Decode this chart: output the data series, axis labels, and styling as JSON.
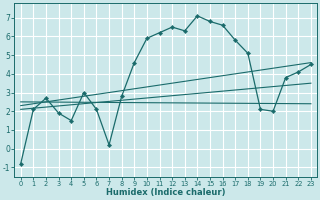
{
  "xlabel": "Humidex (Indice chaleur)",
  "bg_color": "#cce8ea",
  "grid_color": "#ffffff",
  "line_color": "#1a6b6b",
  "xlim": [
    -0.5,
    23.5
  ],
  "ylim": [
    -1.5,
    7.8
  ],
  "xticks": [
    0,
    1,
    2,
    3,
    4,
    5,
    6,
    7,
    8,
    9,
    10,
    11,
    12,
    13,
    14,
    15,
    16,
    17,
    18,
    19,
    20,
    21,
    22,
    23
  ],
  "yticks": [
    -1,
    0,
    1,
    2,
    3,
    4,
    5,
    6,
    7
  ],
  "main_series": {
    "x": [
      0,
      1,
      2,
      3,
      4,
      5,
      6,
      7,
      8,
      9,
      10,
      11,
      12,
      13,
      14,
      15,
      16,
      17,
      18,
      19,
      20,
      21,
      22,
      23
    ],
    "y": [
      -0.8,
      2.1,
      2.7,
      1.9,
      1.5,
      3.0,
      2.1,
      0.2,
      2.8,
      4.6,
      5.9,
      6.2,
      6.5,
      6.3,
      7.1,
      6.8,
      6.6,
      5.8,
      5.1,
      2.1,
      2.0,
      3.8,
      4.1,
      4.5
    ]
  },
  "trend_lines": [
    {
      "x": [
        0,
        23
      ],
      "y": [
        2.1,
        3.5
      ]
    },
    {
      "x": [
        0,
        23
      ],
      "y": [
        2.3,
        4.6
      ]
    },
    {
      "x": [
        0,
        23
      ],
      "y": [
        2.5,
        2.4
      ]
    }
  ]
}
